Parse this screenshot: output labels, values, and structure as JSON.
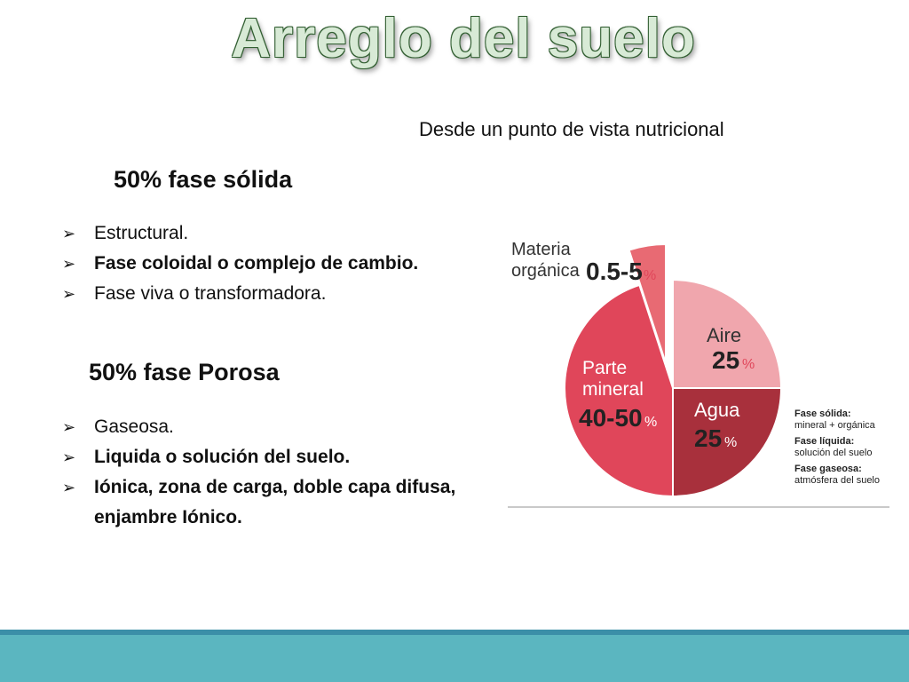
{
  "title": "Arreglo del suelo",
  "subtitle": "Desde un punto de vista nutricional",
  "solid": {
    "heading": "50% fase sólida",
    "items": [
      {
        "text": "Estructural.",
        "bold": false
      },
      {
        "text": "Fase coloidal o complejo de cambio.",
        "bold": true
      },
      {
        "text": "Fase viva o transformadora.",
        "bold": false
      }
    ]
  },
  "porosa": {
    "heading": "50%  fase Porosa",
    "items": [
      {
        "text": "Gaseosa.",
        "bold": false
      },
      {
        "text": "Liquida o solución del suelo.",
        "bold": true
      },
      {
        "text": "Iónica, zona de carga, doble capa difusa, enjambre Iónico.",
        "bold": true
      }
    ]
  },
  "pie": {
    "slices": [
      {
        "label1": "Aire",
        "label2": "",
        "value": "25",
        "pct": "%",
        "share": 25,
        "color": "#f0a6ad"
      },
      {
        "label1": "Agua",
        "label2": "",
        "value": "25",
        "pct": "%",
        "share": 25,
        "color": "#a8303c"
      },
      {
        "label1": "Parte",
        "label2": "mineral",
        "value": "40-50",
        "pct": "%",
        "share": 45,
        "color": "#e0465a"
      },
      {
        "label1": "Materia",
        "label2": "orgánica",
        "value": "0.5-5",
        "pct": "%",
        "share": 5,
        "color": "#e86a73"
      }
    ],
    "legend": [
      {
        "title": "Fase sólida:",
        "desc": "mineral + orgánica"
      },
      {
        "title": "Fase líquida:",
        "desc": "solución del suelo"
      },
      {
        "title": "Fase gaseosa:",
        "desc": "atmósfera del suelo"
      }
    ]
  },
  "colors": {
    "footer": "#5bb6c0",
    "footer_line": "#3b8fa8"
  }
}
